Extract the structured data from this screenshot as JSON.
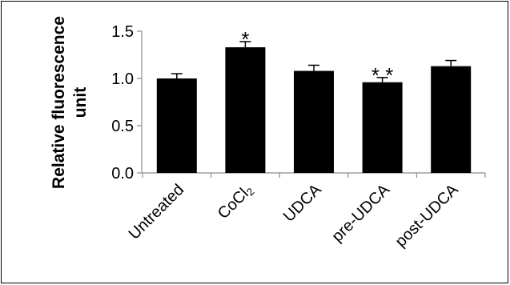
{
  "chart_data": {
    "type": "bar",
    "title": "",
    "xlabel": "",
    "ylabel_lines": [
      "Relative fluorescence",
      "unit"
    ],
    "categories": [
      "Untreated",
      "CoCl2",
      "UDCA",
      "pre-UDCA",
      "post-UDCA"
    ],
    "category_display": [
      {
        "main": "Untreated",
        "sub": ""
      },
      {
        "main": "CoCl",
        "sub": "2"
      },
      {
        "main": "UDCA",
        "sub": ""
      },
      {
        "main": "pre-UDCA",
        "sub": ""
      },
      {
        "main": "post-UDCA",
        "sub": ""
      }
    ],
    "values": [
      1.0,
      1.33,
      1.08,
      0.96,
      1.13
    ],
    "errors": [
      0.05,
      0.06,
      0.06,
      0.05,
      0.06
    ],
    "significance": [
      "",
      "*",
      "",
      "**",
      ""
    ],
    "ylim": [
      0.0,
      1.5
    ],
    "yticks": [
      "0.0",
      "0.5",
      "1.0",
      "1.5"
    ],
    "ytick_values": [
      0.0,
      0.5,
      1.0,
      1.5
    ],
    "grid": false,
    "legend": "none",
    "bar_color": "#000000"
  }
}
